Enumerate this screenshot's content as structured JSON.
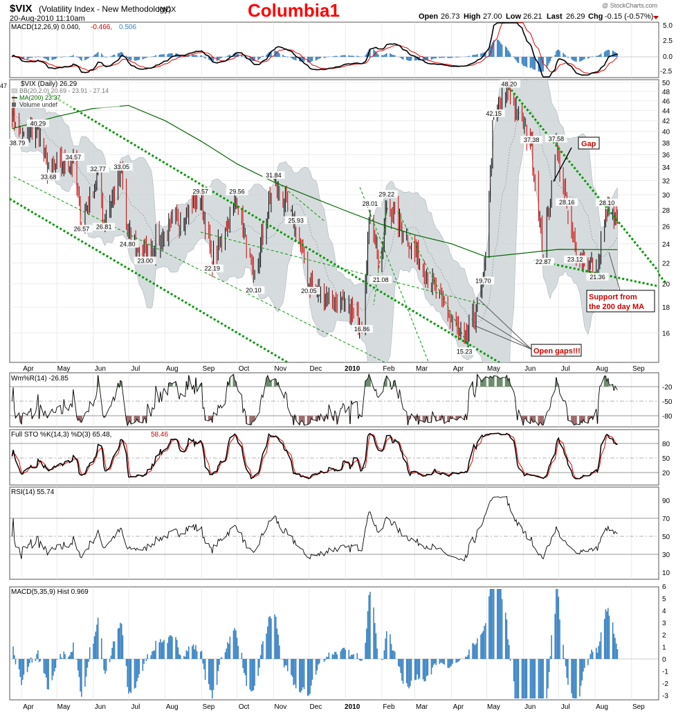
{
  "header": {
    "symbol": "$VIX",
    "name": "(Volatility Index - New Methodology)",
    "exchange": "INDX",
    "date_time": "20-Aug-2010 11:10am",
    "title": "Columbia1",
    "watermark": "@ StockCharts.com",
    "quote": {
      "open_label": "Open",
      "open": "26.73",
      "high_label": "High",
      "high": "27.00",
      "low_label": "Low",
      "low": "26.21",
      "last_label": "Last",
      "last": "26.29",
      "chg_label": "Chg",
      "chg": "-0.15 (-0.57%)"
    }
  },
  "panels": {
    "macd_top": {
      "label": "MACD(12,26,9) 0.040,",
      "v1": "-0.466,",
      "v2": "0.506",
      "ticks": [
        "5.0",
        "2.5",
        "0.0",
        "-2.5"
      ]
    },
    "price": {
      "label": "$VIX (Daily) 26.29",
      "bb": "BB(20,2.0) 20.69 - 23.91 - 27.14",
      "ma": "MA(200) 23.37",
      "vol": "Volume undef",
      "corner": "47",
      "ticks": [
        "50",
        "48",
        "46",
        "44",
        "42",
        "40",
        "38",
        "36",
        "34",
        "32",
        "30",
        "28",
        "26",
        "24",
        "22",
        "20",
        "18",
        "16"
      ]
    },
    "wpr": {
      "label": "Wm%R(14) -26.85",
      "ticks": [
        "-20",
        "-50",
        "-80"
      ]
    },
    "sto": {
      "label": "Full STO %K(14,3) %D(3) 65.48,",
      "d": "58.46",
      "ticks": [
        "80",
        "50",
        "20"
      ]
    },
    "rsi": {
      "label": "RSI(14) 55.74",
      "ticks": [
        "90",
        "70",
        "50",
        "30",
        "10"
      ]
    },
    "hist": {
      "label": "MACD(5,35,9) Hist 0.969",
      "ticks": [
        "6",
        "5",
        "4",
        "3",
        "2",
        "1",
        "0",
        "-1",
        "-2",
        "-3"
      ]
    }
  },
  "x_axis": {
    "labels": [
      "Apr",
      "May",
      "Jun",
      "Jul",
      "Aug",
      "Sep",
      "Oct",
      "Nov",
      "Dec",
      "2010",
      "Feb",
      "Mar",
      "Apr",
      "May",
      "Jun",
      "Jul",
      "Aug",
      "Sep"
    ]
  },
  "annotations": {
    "gap": "Gap",
    "open_gaps": "Open gaps!!!",
    "support_line1": "Support from",
    "support_line2": "the 200 day MA"
  },
  "colors": {
    "up": "#000000",
    "down": "#cc0000",
    "ma": "#006600",
    "trend": "#009900",
    "band_fill": "#cfd6d8",
    "hist": "#3b83c4",
    "title_red": "#ff0000"
  },
  "chart_data": {
    "type": "candlestick",
    "title": "Columbia1",
    "ylim": [
      14,
      50
    ],
    "scale": "log",
    "price_labels": [
      {
        "date": "2009-04-01",
        "value": 38.79
      },
      {
        "date": "2009-04-15",
        "value": 40.29
      },
      {
        "date": "2009-04-24",
        "value": 33.68
      },
      {
        "date": "2009-05-15",
        "value": 34.57
      },
      {
        "date": "2009-05-22",
        "value": 26.57
      },
      {
        "date": "2009-06-05",
        "value": 32.77
      },
      {
        "date": "2009-06-10",
        "value": 26.81
      },
      {
        "date": "2009-06-25",
        "value": 33.05
      },
      {
        "date": "2009-06-30",
        "value": 24.8
      },
      {
        "date": "2009-07-15",
        "value": 23.0
      },
      {
        "date": "2009-08-31",
        "value": 29.57
      },
      {
        "date": "2009-09-10",
        "value": 22.19
      },
      {
        "date": "2009-10-01",
        "value": 29.56
      },
      {
        "date": "2009-10-15",
        "value": 20.1
      },
      {
        "date": "2009-11-01",
        "value": 31.84
      },
      {
        "date": "2009-11-20",
        "value": 25.93
      },
      {
        "date": "2009-12-01",
        "value": 20.05
      },
      {
        "date": "2010-01-15",
        "value": 16.86
      },
      {
        "date": "2010-01-22",
        "value": 28.01
      },
      {
        "date": "2010-01-31",
        "value": 21.08
      },
      {
        "date": "2010-02-05",
        "value": 29.22
      },
      {
        "date": "2010-04-12",
        "value": 15.23
      },
      {
        "date": "2010-04-28",
        "value": 19.7
      },
      {
        "date": "2010-05-07",
        "value": 42.15
      },
      {
        "date": "2010-05-20",
        "value": 48.2
      },
      {
        "date": "2010-06-08",
        "value": 37.38
      },
      {
        "date": "2010-06-18",
        "value": 22.87
      },
      {
        "date": "2010-06-29",
        "value": 37.58
      },
      {
        "date": "2010-07-08",
        "value": 28.16
      },
      {
        "date": "2010-07-15",
        "value": 23.12
      },
      {
        "date": "2010-08-03",
        "value": 21.36
      },
      {
        "date": "2010-08-11",
        "value": 28.1
      }
    ],
    "ma200_last": 23.37,
    "bb_last": [
      20.69,
      23.91,
      27.14
    ],
    "macd_top_last": [
      0.04,
      -0.466,
      0.506
    ],
    "williams_r_last": -26.85,
    "stochastic_last": [
      65.48,
      58.46
    ],
    "rsi_last": 55.74,
    "macd_hist_last": 0.969
  }
}
